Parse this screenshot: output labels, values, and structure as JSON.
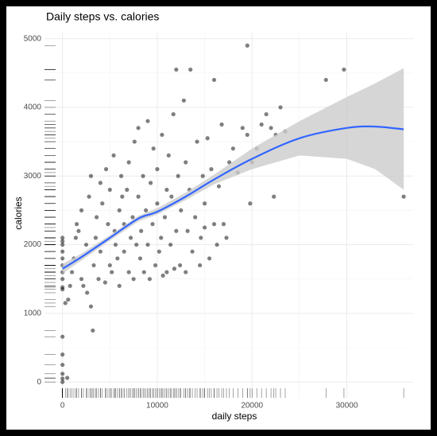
{
  "chart_data": {
    "type": "scatter",
    "title": "Daily steps vs. calories",
    "x_label": "daily steps",
    "y_label": "calories",
    "xlim": [
      -1900,
      37000
    ],
    "ylim": [
      -230,
      5100
    ],
    "xticks": [
      0,
      10000,
      20000,
      30000
    ],
    "yticks": [
      0,
      1000,
      2000,
      3000,
      4000,
      5000
    ],
    "grid": true,
    "minor_grid": true,
    "rug": true,
    "color": "#000000",
    "x": [
      0,
      0,
      0,
      0,
      0,
      0,
      0,
      0,
      0,
      0,
      0,
      0,
      0,
      0,
      0,
      0,
      500,
      300,
      600,
      800,
      1000,
      1200,
      1400,
      1500,
      1700,
      2000,
      2000,
      2200,
      2500,
      2600,
      2800,
      3000,
      3000,
      3200,
      3300,
      3500,
      3600,
      3800,
      4000,
      4000,
      4200,
      4500,
      4600,
      4800,
      5000,
      5000,
      5200,
      5400,
      5500,
      5600,
      5800,
      6000,
      6000,
      6200,
      6300,
      6500,
      6500,
      6800,
      7000,
      7000,
      7200,
      7400,
      7500,
      7600,
      7800,
      8000,
      8000,
      8200,
      8300,
      8500,
      8600,
      8800,
      9000,
      9000,
      9200,
      9300,
      9500,
      9600,
      9800,
      10000,
      10000,
      10200,
      10400,
      10500,
      10600,
      10800,
      11000,
      11000,
      11200,
      11400,
      11500,
      11700,
      11800,
      12000,
      12000,
      12200,
      12400,
      12500,
      12800,
      13000,
      13000,
      13200,
      13400,
      13500,
      13700,
      14000,
      14200,
      14500,
      14600,
      14800,
      15000,
      15000,
      15300,
      15500,
      15700,
      16000,
      16000,
      16300,
      16500,
      16800,
      17000,
      17300,
      17600,
      18000,
      18500,
      19000,
      19500,
      19500,
      19800,
      20000,
      20500,
      21000,
      21500,
      22000,
      22300,
      22500,
      23000,
      23500,
      27800,
      29700,
      36000
    ],
    "values": [
      1380,
      1500,
      1600,
      1700,
      1800,
      1900,
      2000,
      2050,
      2100,
      1350,
      660,
      400,
      250,
      120,
      50,
      0,
      60,
      1150,
      1200,
      1400,
      1600,
      1800,
      2100,
      2300,
      2200,
      2500,
      1500,
      1400,
      2000,
      1300,
      2700,
      3000,
      1100,
      750,
      1700,
      2100,
      2400,
      1500,
      1900,
      2900,
      2600,
      1450,
      3100,
      2300,
      1700,
      2800,
      1600,
      3300,
      2200,
      2000,
      1800,
      2500,
      1400,
      3000,
      2700,
      1900,
      2300,
      2800,
      3200,
      1600,
      2100,
      2400,
      1500,
      3500,
      2000,
      2700,
      3700,
      1800,
      2200,
      3000,
      1600,
      2500,
      3800,
      2000,
      1500,
      2900,
      2300,
      3400,
      1700,
      2600,
      3100,
      1900,
      2100,
      3600,
      1550,
      2400,
      2800,
      1600,
      3300,
      2000,
      2700,
      3900,
      1650,
      2200,
      4550,
      3000,
      1700,
      2500,
      4100,
      1600,
      3200,
      2200,
      2800,
      4550,
      1900,
      2400,
      3500,
      1700,
      2100,
      3000,
      2600,
      2250,
      3550,
      1800,
      3100,
      2300,
      4400,
      2000,
      2850,
      3750,
      2300,
      2100,
      3200,
      3400,
      3050,
      3700,
      4900,
      3600,
      2600,
      3200,
      3400,
      3750,
      3900,
      3700,
      2700,
      3600,
      4000,
      3650,
      4400,
      4550,
      2700
    ],
    "smooth": {
      "color": "#3366ff",
      "band_color": "#cccccc",
      "x": [
        0,
        2000,
        5000,
        8000,
        10000,
        13000,
        16000,
        20000,
        25000,
        30000,
        33000,
        36000
      ],
      "values": [
        1650,
        1820,
        2100,
        2380,
        2480,
        2700,
        2950,
        3250,
        3550,
        3700,
        3720,
        3680
      ],
      "lower": [
        1580,
        1770,
        2060,
        2340,
        2440,
        2650,
        2880,
        3100,
        3300,
        3250,
        3100,
        2800
      ],
      "upper": [
        1720,
        1870,
        2140,
        2420,
        2530,
        2760,
        3020,
        3400,
        3800,
        4150,
        4350,
        4570
      ]
    }
  }
}
